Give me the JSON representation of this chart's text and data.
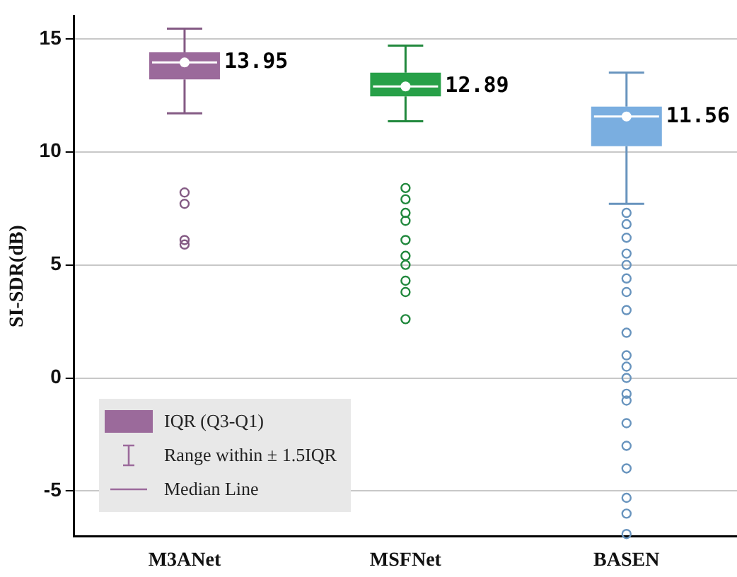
{
  "chart_data": {
    "type": "box",
    "ylabel": "SI-SDR(dB)",
    "categories": [
      "M3ANet",
      "MSFNet",
      "BASEN"
    ],
    "colors": [
      "#9b6a9b",
      "#27a048",
      "#7aaee0"
    ],
    "boxes": [
      {
        "low": 11.7,
        "q1": 13.2,
        "median": 13.95,
        "mean": 13.95,
        "q3": 14.4,
        "high": 15.45,
        "outliers": [
          8.2,
          7.7,
          6.1,
          5.9
        ]
      },
      {
        "low": 11.35,
        "q1": 12.45,
        "median": 12.89,
        "mean": 12.89,
        "q3": 13.5,
        "high": 14.7,
        "outliers": [
          8.4,
          7.9,
          7.3,
          6.95,
          6.1,
          5.4,
          5.0,
          4.3,
          3.8,
          2.6
        ]
      },
      {
        "low": 7.7,
        "q1": 10.25,
        "median": 11.56,
        "mean": 11.56,
        "q3": 12.0,
        "high": 13.5,
        "outliers": [
          7.3,
          6.8,
          6.2,
          5.5,
          5.0,
          4.4,
          3.8,
          3.0,
          2.0,
          1.0,
          0.5,
          0,
          -0.7,
          -1.0,
          -2.0,
          -3.0,
          -4.0,
          -5.3,
          -6.0,
          -6.9
        ]
      }
    ],
    "ylim": [
      -7,
      16
    ],
    "yticks": [
      -5,
      0,
      5,
      10,
      15
    ],
    "grid": "y",
    "value_labels": [
      "13.95",
      "12.89",
      "11.56"
    ],
    "annotations": [
      "IQR (Q3-Q1)",
      "Range within ± 1.5IQR",
      "Median Line"
    ]
  }
}
